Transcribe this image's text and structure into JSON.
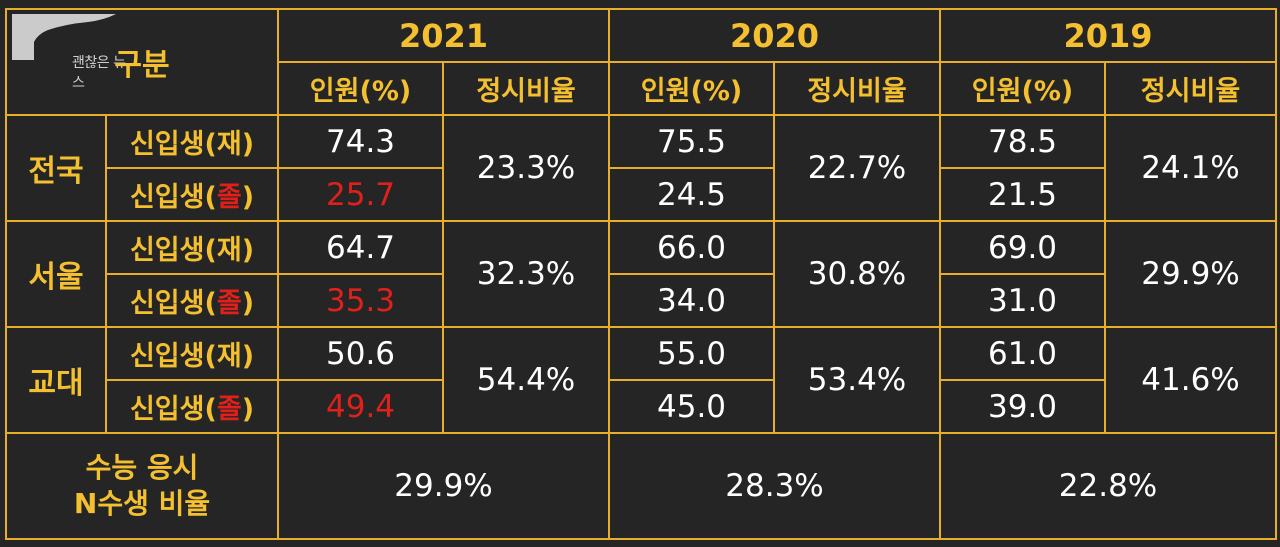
{
  "watermark": "괜찮은 뉴스",
  "header": {
    "category": "구분",
    "years": [
      "2021",
      "2020",
      "2019"
    ],
    "col_people": "인원(%)",
    "col_ratio": "정시비율"
  },
  "row_types": {
    "prefix": "신입생(",
    "jae_char": "재",
    "jol_char": "졸",
    "suffix": ")"
  },
  "regions": [
    {
      "name": "전국",
      "jae": [
        "74.3",
        "75.5",
        "78.5"
      ],
      "jol": [
        "25.7",
        "24.5",
        "21.5"
      ],
      "ratio": [
        "23.3%",
        "22.7%",
        "24.1%"
      ]
    },
    {
      "name": "서울",
      "jae": [
        "64.7",
        "66.0",
        "69.0"
      ],
      "jol": [
        "35.3",
        "34.0",
        "31.0"
      ],
      "ratio": [
        "32.3%",
        "30.8%",
        "29.9%"
      ]
    },
    {
      "name": "교대",
      "jae": [
        "50.6",
        "55.0",
        "61.0"
      ],
      "jol": [
        "49.4",
        "45.0",
        "39.0"
      ],
      "ratio": [
        "54.4%",
        "53.4%",
        "41.6%"
      ]
    }
  ],
  "footer": {
    "label_line1": "수능 응시",
    "label_line2": "N수생 비율",
    "values": [
      "29.9%",
      "28.3%",
      "22.8%"
    ]
  },
  "colors": {
    "background": "#252525",
    "border": "#e8ae2b",
    "label": "#f4c02f",
    "highlight": "#e0201b",
    "value": "#ffffff"
  },
  "chart_data": {
    "type": "table",
    "columns": [
      "구분",
      "2021 인원(%)",
      "2021 정시비율",
      "2020 인원(%)",
      "2020 정시비율",
      "2019 인원(%)",
      "2019 정시비율"
    ],
    "rows": [
      [
        "전국 신입생(재)",
        "74.3",
        "23.3%",
        "75.5",
        "22.7%",
        "78.5",
        "24.1%"
      ],
      [
        "전국 신입생(졸)",
        "25.7",
        "23.3%",
        "24.5",
        "22.7%",
        "21.5",
        "24.1%"
      ],
      [
        "서울 신입생(재)",
        "64.7",
        "32.3%",
        "66.0",
        "30.8%",
        "69.0",
        "29.9%"
      ],
      [
        "서울 신입생(졸)",
        "35.3",
        "32.3%",
        "34.0",
        "30.8%",
        "31.0",
        "29.9%"
      ],
      [
        "교대 신입생(재)",
        "50.6",
        "54.4%",
        "55.0",
        "53.4%",
        "61.0",
        "41.6%"
      ],
      [
        "교대 신입생(졸)",
        "49.4",
        "54.4%",
        "45.0",
        "53.4%",
        "39.0",
        "41.6%"
      ],
      [
        "수능 응시 N수생 비율",
        "29.9%",
        "",
        "28.3%",
        "",
        "22.8%",
        ""
      ]
    ]
  }
}
